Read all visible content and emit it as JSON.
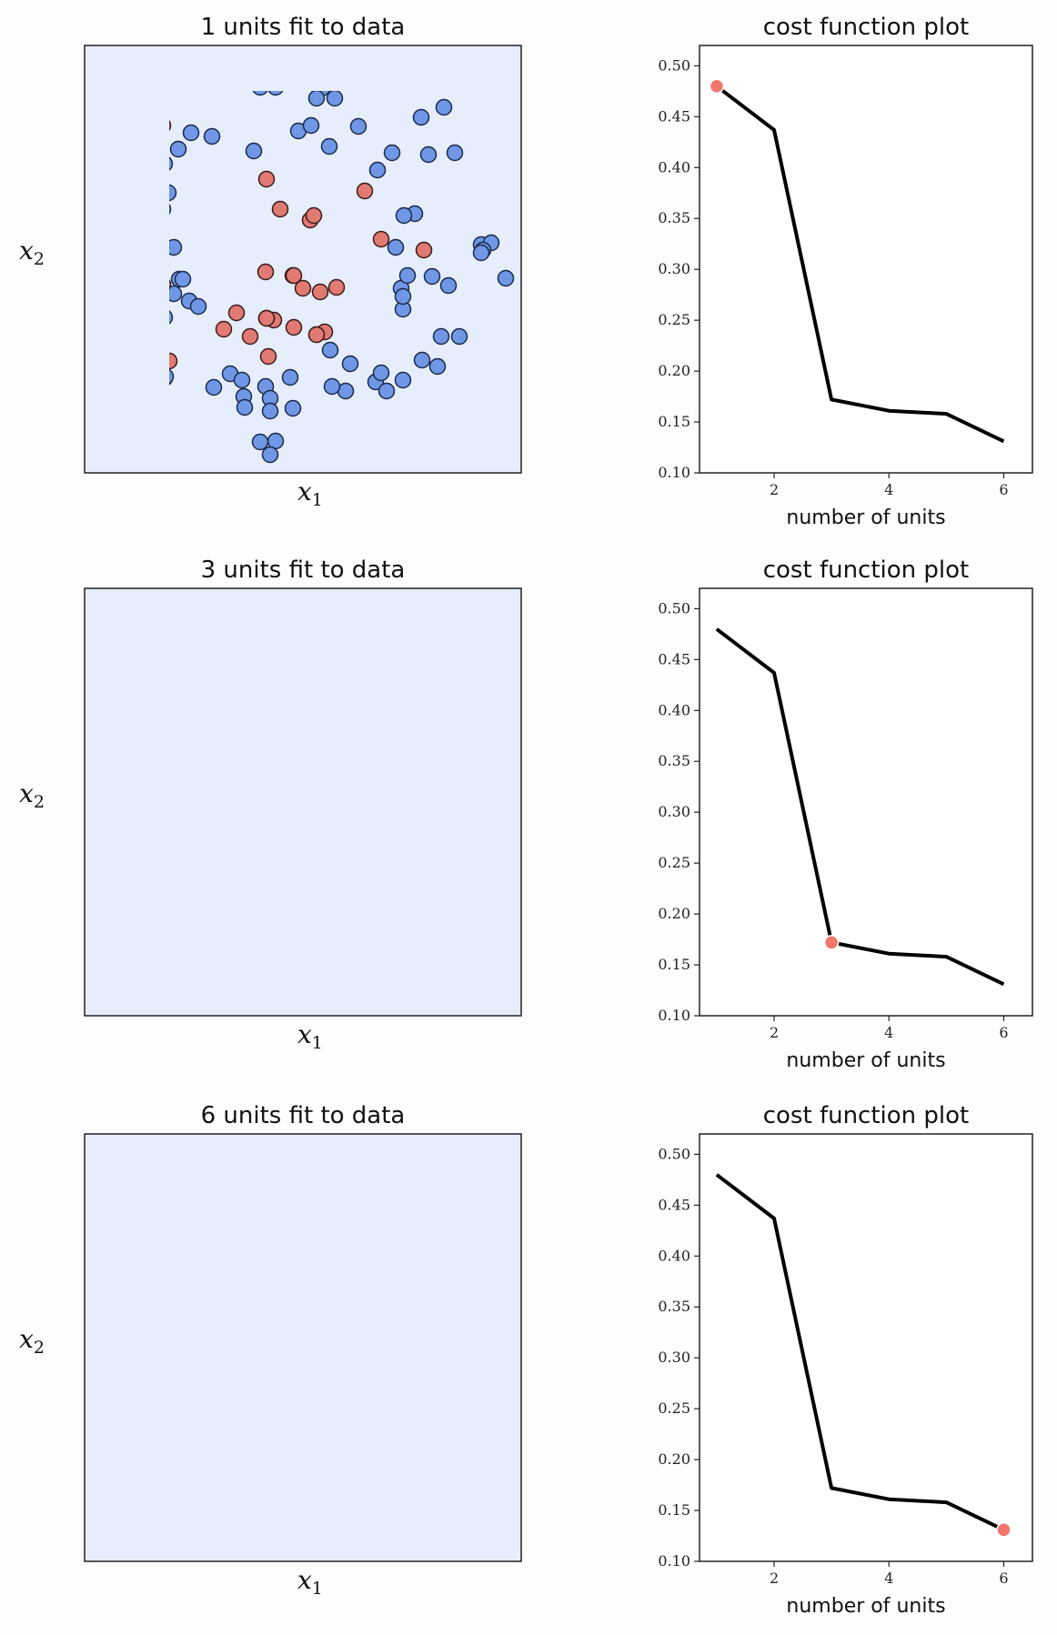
{
  "colors": {
    "class_a_fill": "#6f97e6",
    "class_b_fill": "#e07a72",
    "background_a": "#e6eefc",
    "background_b": "#fde9e6",
    "boundary": "#000000",
    "cost_line": "#000000",
    "highlight_point": "#f2766c"
  },
  "chart_data": [
    {
      "type": "scatter",
      "title": "1 units fit to data",
      "xlabel": "x1",
      "ylabel": "x2",
      "boundary": "none",
      "points": "shared scatter data (blue circles / red circles) on uniform blue background"
    },
    {
      "type": "line",
      "title": "cost function plot",
      "xlabel": "number of units",
      "ylabel": "",
      "x": [
        1,
        2,
        3,
        4,
        5,
        6
      ],
      "y": [
        0.48,
        0.437,
        0.172,
        0.161,
        0.158,
        0.131
      ],
      "xticks": [
        2,
        4,
        6
      ],
      "yticks": [
        "0.10",
        "0.15",
        "0.20",
        "0.25",
        "0.30",
        "0.35",
        "0.40",
        "0.45",
        "0.50"
      ],
      "xlim": [
        0.7,
        6.5
      ],
      "ylim": [
        0.1,
        0.52
      ],
      "highlight_x": 1
    },
    {
      "type": "scatter",
      "title": "3 units fit to data",
      "xlabel": "x1",
      "ylabel": "x2",
      "boundary": "single closed region"
    },
    {
      "type": "line",
      "title": "cost function plot",
      "xlabel": "number of units",
      "ylabel": "",
      "x": [
        1,
        2,
        3,
        4,
        5,
        6
      ],
      "y": [
        0.48,
        0.437,
        0.172,
        0.161,
        0.158,
        0.131
      ],
      "xticks": [
        2,
        4,
        6
      ],
      "yticks": [
        "0.10",
        "0.15",
        "0.20",
        "0.25",
        "0.30",
        "0.35",
        "0.40",
        "0.45",
        "0.50"
      ],
      "xlim": [
        0.7,
        6.5
      ],
      "ylim": [
        0.1,
        0.52
      ],
      "highlight_x": 3
    },
    {
      "type": "scatter",
      "title": "6 units fit to data",
      "xlabel": "x1",
      "ylabel": "x2",
      "boundary": "multiple regions"
    },
    {
      "type": "line",
      "title": "cost function plot",
      "xlabel": "number of units",
      "ylabel": "",
      "x": [
        1,
        2,
        3,
        4,
        5,
        6
      ],
      "y": [
        0.48,
        0.437,
        0.172,
        0.161,
        0.158,
        0.131
      ],
      "xticks": [
        2,
        4,
        6
      ],
      "yticks": [
        "0.10",
        "0.15",
        "0.20",
        "0.25",
        "0.30",
        "0.35",
        "0.40",
        "0.45",
        "0.50"
      ],
      "xlim": [
        0.7,
        6.5
      ],
      "ylim": [
        0.1,
        0.52
      ],
      "highlight_x": 6
    }
  ]
}
